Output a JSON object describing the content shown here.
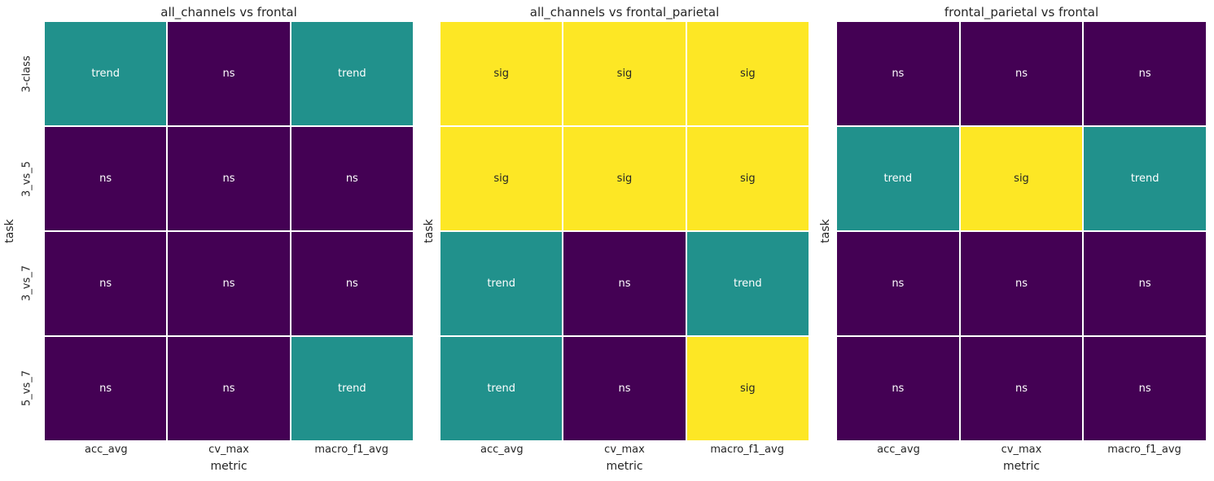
{
  "figure": {
    "background": "#ffffff",
    "text_color": "#262626",
    "colormap": "viridis",
    "significance_levels": [
      "ns",
      "trend",
      "sig"
    ],
    "value_colors": {
      "ns": "#440154",
      "trend": "#21918c",
      "sig": "#fde725"
    },
    "value_text_colors": {
      "ns": "#ffffff",
      "trend": "#ffffff",
      "sig": "#262626"
    }
  },
  "chart_data": [
    {
      "type": "heatmap",
      "title": "all_channels vs frontal",
      "xlabel": "metric",
      "ylabel": "task",
      "x_categories": [
        "acc_avg",
        "cv_max",
        "macro_f1_avg"
      ],
      "y_categories": [
        "3-class",
        "3_vs_5",
        "3_vs_7",
        "5_vs_7"
      ],
      "show_y_tick_labels": true,
      "grid_gap_color": "#ffffff",
      "cells": [
        [
          "trend",
          "ns",
          "trend"
        ],
        [
          "ns",
          "ns",
          "ns"
        ],
        [
          "ns",
          "ns",
          "ns"
        ],
        [
          "ns",
          "ns",
          "trend"
        ]
      ]
    },
    {
      "type": "heatmap",
      "title": "all_channels vs frontal_parietal",
      "xlabel": "metric",
      "ylabel": "task",
      "x_categories": [
        "acc_avg",
        "cv_max",
        "macro_f1_avg"
      ],
      "y_categories": [
        "3-class",
        "3_vs_5",
        "3_vs_7",
        "5_vs_7"
      ],
      "show_y_tick_labels": false,
      "grid_gap_color": "#ffffff",
      "cells": [
        [
          "sig",
          "sig",
          "sig"
        ],
        [
          "sig",
          "sig",
          "sig"
        ],
        [
          "trend",
          "ns",
          "trend"
        ],
        [
          "trend",
          "ns",
          "sig"
        ]
      ]
    },
    {
      "type": "heatmap",
      "title": "frontal_parietal vs frontal",
      "xlabel": "metric",
      "ylabel": "task",
      "x_categories": [
        "acc_avg",
        "cv_max",
        "macro_f1_avg"
      ],
      "y_categories": [
        "3-class",
        "3_vs_5",
        "3_vs_7",
        "5_vs_7"
      ],
      "show_y_tick_labels": false,
      "grid_gap_color": "#ffffff",
      "cells": [
        [
          "ns",
          "ns",
          "ns"
        ],
        [
          "trend",
          "sig",
          "trend"
        ],
        [
          "ns",
          "ns",
          "ns"
        ],
        [
          "ns",
          "ns",
          "ns"
        ]
      ]
    }
  ]
}
